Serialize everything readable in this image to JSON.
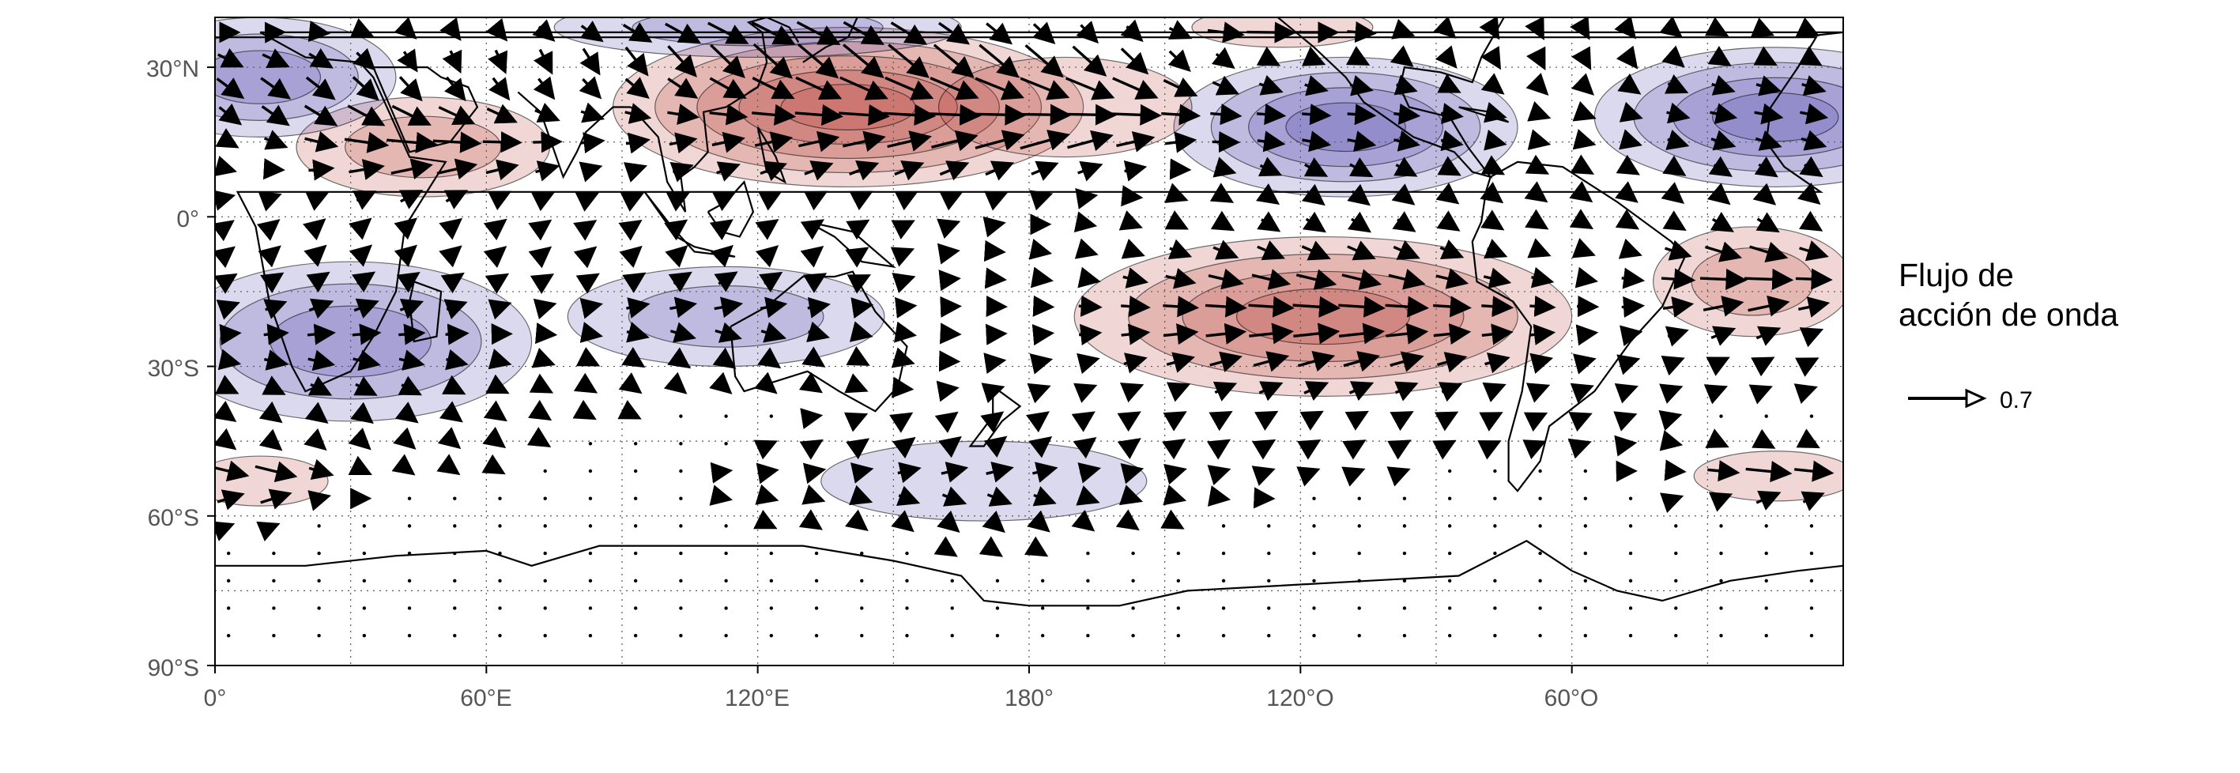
{
  "map": {
    "lon_labels": [
      "0°",
      "60°E",
      "120°E",
      "180°",
      "120°O",
      "60°O"
    ],
    "lat_labels": [
      "30°N",
      "0°",
      "30°S",
      "60°S",
      "90°S"
    ],
    "lon_label_values": [
      0,
      60,
      120,
      180,
      240,
      300
    ],
    "lat_label_values": [
      30,
      0,
      -30,
      -60,
      -90
    ],
    "lon_range": [
      0,
      360
    ],
    "lat_range": [
      -90,
      40
    ],
    "grid": "dotted",
    "colors": {
      "positive_anomaly": "#b5352b",
      "negative_anomaly": "#4d42a8",
      "coastline": "#000000",
      "vector": "#000000"
    }
  },
  "legend": {
    "title_line1": "Flujo de",
    "title_line2": "acción de onda",
    "reference_value": "0.7"
  }
}
